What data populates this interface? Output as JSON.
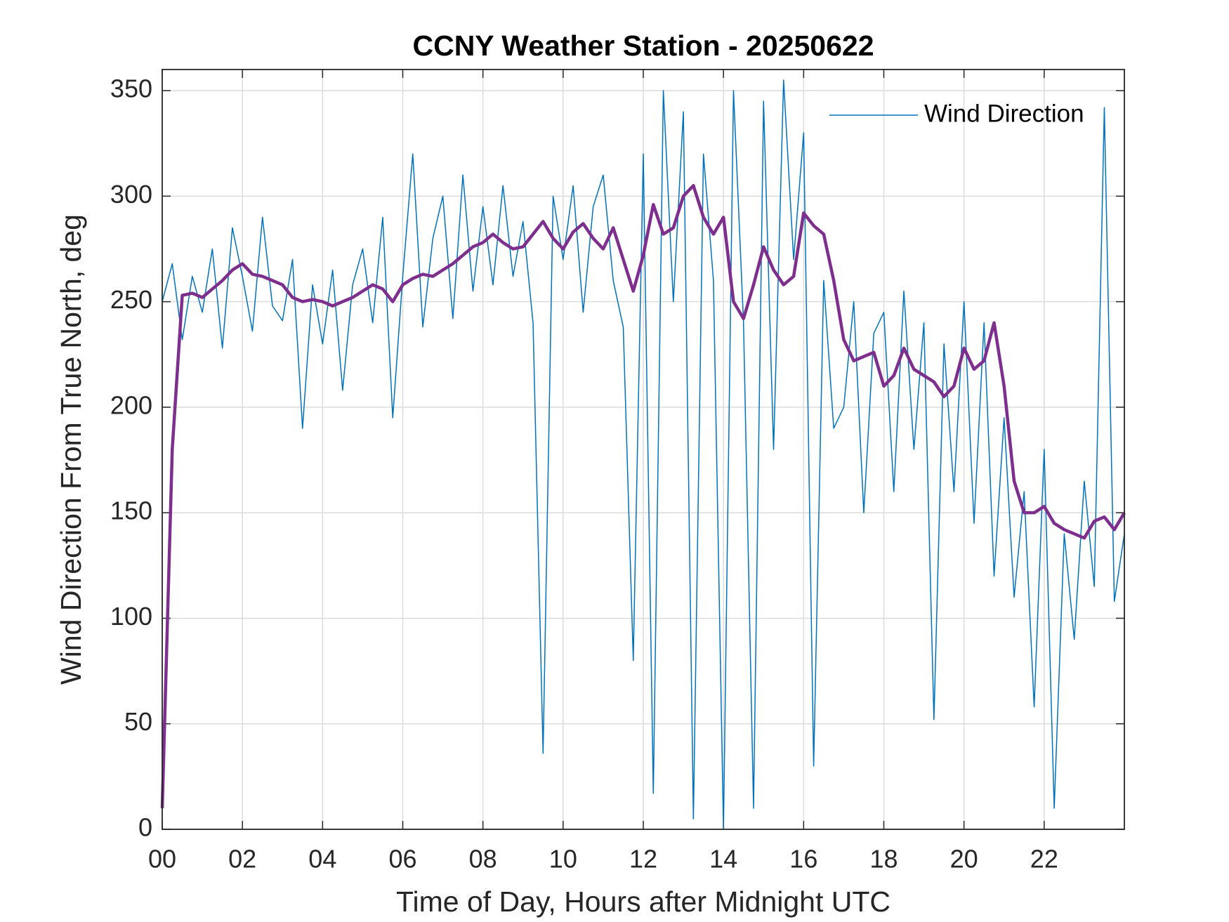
{
  "chart_data": {
    "type": "line",
    "title": "CCNY Weather Station - 20250622",
    "xlabel": "Time of Day, Hours after Midnight UTC",
    "ylabel": "Wind Direction From True North, deg",
    "x": [
      0,
      0.25,
      0.5,
      0.75,
      1,
      1.25,
      1.5,
      1.75,
      2,
      2.25,
      2.5,
      2.75,
      3,
      3.25,
      3.5,
      3.75,
      4,
      4.25,
      4.5,
      4.75,
      5,
      5.25,
      5.5,
      5.75,
      6,
      6.25,
      6.5,
      6.75,
      7,
      7.25,
      7.5,
      7.75,
      8,
      8.25,
      8.5,
      8.75,
      9,
      9.25,
      9.5,
      9.75,
      10,
      10.25,
      10.5,
      10.75,
      11,
      11.25,
      11.5,
      11.75,
      12,
      12.25,
      12.5,
      12.75,
      13,
      13.25,
      13.5,
      13.75,
      14,
      14.25,
      14.5,
      14.75,
      15,
      15.25,
      15.5,
      15.75,
      16,
      16.25,
      16.5,
      16.75,
      17,
      17.25,
      17.5,
      17.75,
      18,
      18.25,
      18.5,
      18.75,
      19,
      19.25,
      19.5,
      19.75,
      20,
      20.25,
      20.5,
      20.75,
      21,
      21.25,
      21.5,
      21.75,
      22,
      22.25,
      22.5,
      22.75,
      23,
      23.25,
      23.5,
      23.75,
      24
    ],
    "series": [
      {
        "name": "Wind Direction",
        "color": "#0072BD",
        "width": 1.5,
        "values": [
          250,
          268,
          232,
          262,
          245,
          275,
          228,
          285,
          262,
          236,
          290,
          248,
          241,
          270,
          190,
          258,
          230,
          265,
          208,
          258,
          275,
          240,
          290,
          195,
          262,
          320,
          238,
          280,
          300,
          242,
          310,
          255,
          295,
          258,
          305,
          262,
          288,
          240,
          36,
          300,
          270,
          305,
          245,
          295,
          310,
          260,
          238,
          80,
          320,
          17,
          350,
          250,
          340,
          5,
          320,
          260,
          0,
          350,
          240,
          10,
          345,
          180,
          355,
          270,
          330,
          30,
          260,
          190,
          200,
          250,
          150,
          235,
          245,
          160,
          255,
          180,
          240,
          52,
          230,
          160,
          250,
          145,
          240,
          120,
          195,
          110,
          160,
          58,
          180,
          10,
          140,
          90,
          165,
          115,
          342,
          108,
          140
        ]
      },
      {
        "color": "#7E2F8E",
        "width": 4.5,
        "values": [
          10,
          180,
          253,
          254,
          252,
          256,
          260,
          265,
          268,
          263,
          262,
          260,
          258,
          252,
          250,
          251,
          250,
          248,
          250,
          252,
          255,
          258,
          256,
          250,
          258,
          261,
          263,
          262,
          265,
          268,
          272,
          276,
          278,
          282,
          278,
          275,
          276,
          282,
          288,
          280,
          275,
          283,
          287,
          280,
          275,
          285,
          270,
          255,
          272,
          296,
          282,
          285,
          300,
          305,
          290,
          282,
          290,
          250,
          242,
          258,
          276,
          265,
          258,
          262,
          292,
          286,
          282,
          260,
          232,
          222,
          224,
          226,
          210,
          215,
          228,
          218,
          215,
          212,
          205,
          210,
          228,
          218,
          222,
          240,
          210,
          165,
          150,
          150,
          153,
          145,
          142,
          140,
          138,
          146,
          148,
          142,
          150
        ]
      }
    ],
    "xlim": [
      0,
      24
    ],
    "xticks": [
      {
        "value": 0,
        "label": "00"
      },
      {
        "value": 2,
        "label": "02"
      },
      {
        "value": 4,
        "label": "04"
      },
      {
        "value": 6,
        "label": "06"
      },
      {
        "value": 8,
        "label": "08"
      },
      10,
      12,
      14,
      16,
      18,
      20,
      22
    ],
    "ylim": [
      0,
      360
    ],
    "yticks": [
      0,
      50,
      100,
      150,
      200,
      250,
      300,
      350
    ],
    "grid": true,
    "legend": "northeast"
  }
}
